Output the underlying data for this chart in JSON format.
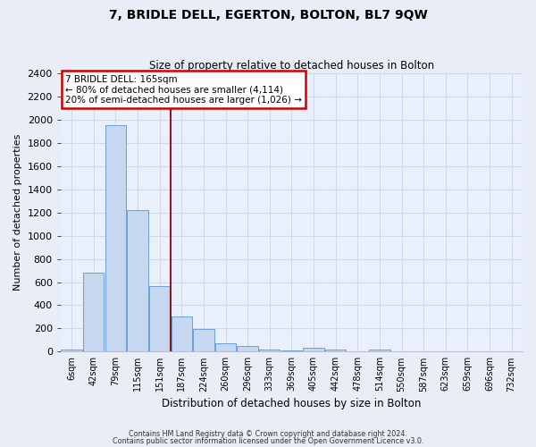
{
  "title": "7, BRIDLE DELL, EGERTON, BOLTON, BL7 9QW",
  "subtitle": "Size of property relative to detached houses in Bolton",
  "xlabel": "Distribution of detached houses by size in Bolton",
  "ylabel": "Number of detached properties",
  "bin_labels": [
    "6sqm",
    "42sqm",
    "79sqm",
    "115sqm",
    "151sqm",
    "187sqm",
    "224sqm",
    "260sqm",
    "296sqm",
    "333sqm",
    "369sqm",
    "405sqm",
    "442sqm",
    "478sqm",
    "514sqm",
    "550sqm",
    "587sqm",
    "623sqm",
    "659sqm",
    "696sqm",
    "732sqm"
  ],
  "bin_values": [
    15,
    680,
    1950,
    1220,
    565,
    300,
    195,
    75,
    45,
    20,
    10,
    35,
    20,
    0,
    15,
    0,
    0,
    0,
    0,
    0,
    0
  ],
  "bar_color": "#c5d8f0",
  "bar_edge_color": "#6a9fd8",
  "background_color": "#eaf0fb",
  "grid_color": "#d0d8ec",
  "vline_color": "#8b1a1a",
  "annotation_text": "7 BRIDLE DELL: 165sqm\n← 80% of detached houses are smaller (4,114)\n20% of semi-detached houses are larger (1,026) →",
  "annotation_box_color": "#ffffff",
  "annotation_box_edge_color": "#cc0000",
  "ylim": [
    0,
    2400
  ],
  "yticks": [
    0,
    200,
    400,
    600,
    800,
    1000,
    1200,
    1400,
    1600,
    1800,
    2000,
    2200,
    2400
  ],
  "footer1": "Contains HM Land Registry data © Crown copyright and database right 2024.",
  "footer2": "Contains public sector information licensed under the Open Government Licence v3.0.",
  "fig_bg": "#e8edf8"
}
